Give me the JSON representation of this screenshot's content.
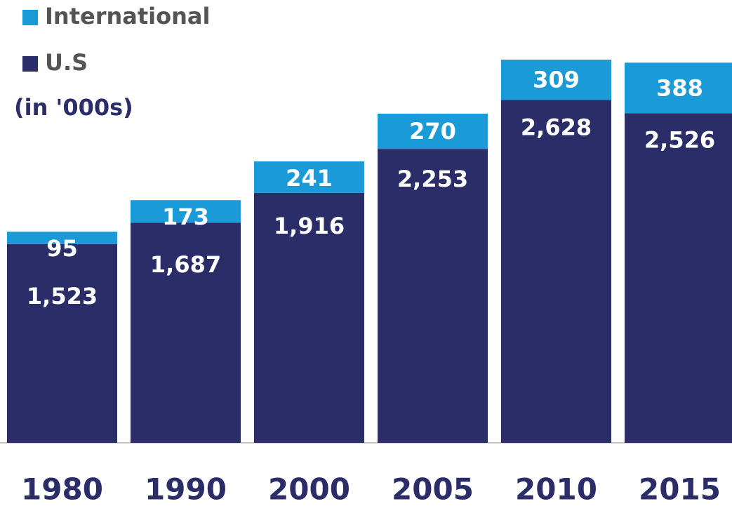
{
  "chart_data": {
    "type": "stacked_bar",
    "subtitle": "(in '000s)",
    "categories": [
      "1980",
      "1990",
      "2000",
      "2005",
      "2010",
      "2015"
    ],
    "series": [
      {
        "name": "U.S",
        "color": "#2b2d69",
        "values": [
          1523,
          1687,
          1916,
          2253,
          2628,
          2526
        ],
        "value_labels": [
          "1,523",
          "1,687",
          "1,916",
          "2,253",
          "2,628",
          "2,526"
        ]
      },
      {
        "name": "International",
        "color": "#1a9ad6",
        "values": [
          95,
          173,
          241,
          270,
          309,
          388
        ]
      }
    ]
  }
}
